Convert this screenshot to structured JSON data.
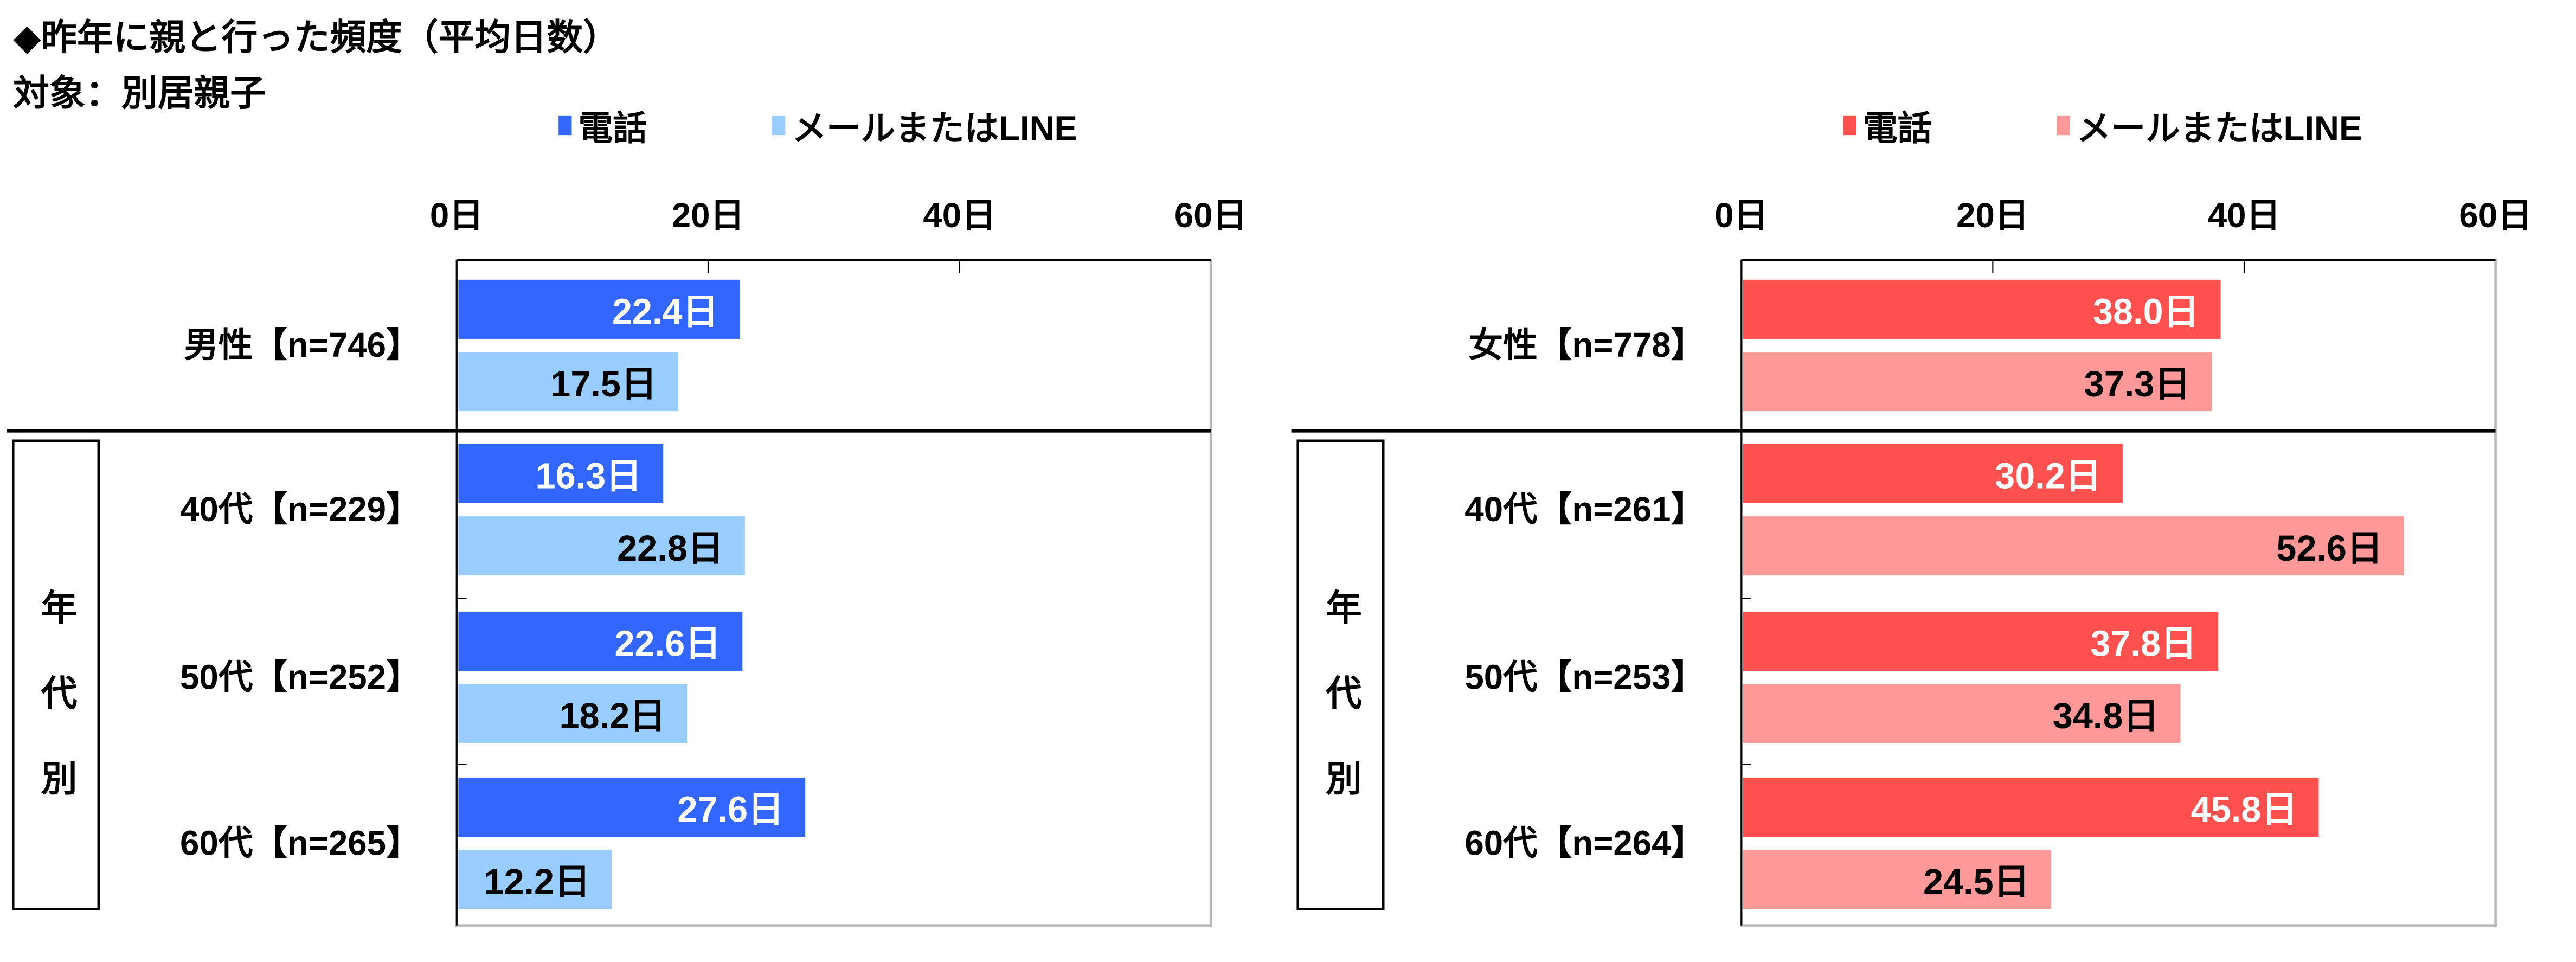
{
  "title": "◆昨年に親と行った頻度（平均日数）",
  "subtitle": "対象：別居親子",
  "group_box_label": "年代別",
  "chart_data": [
    {
      "type": "bar",
      "orientation": "horizontal",
      "categories": [
        "男性【n=746】",
        "40代【n=229】",
        "50代【n=252】",
        "60代【n=265】"
      ],
      "series": [
        {
          "name": "電話",
          "color": "#3366FF",
          "label_color": "#FFFFFF",
          "values": [
            22.4,
            16.3,
            22.6,
            27.6
          ]
        },
        {
          "name": "メールまたはLINE",
          "color": "#99CCFF",
          "label_color": "#000000",
          "values": [
            17.5,
            22.8,
            18.2,
            12.2
          ]
        }
      ],
      "value_unit": "日",
      "xlim": [
        0,
        60
      ],
      "xticks": [
        0,
        20,
        40,
        60
      ],
      "xtick_labels": [
        "0日",
        "20日",
        "40日",
        "60日"
      ],
      "legend_placement": "top",
      "grid": true
    },
    {
      "type": "bar",
      "orientation": "horizontal",
      "categories": [
        "女性【n=778】",
        "40代【n=261】",
        "50代【n=253】",
        "60代【n=264】"
      ],
      "series": [
        {
          "name": "電話",
          "color": "#FF5050",
          "label_color": "#FFFFFF",
          "values": [
            38.0,
            30.2,
            37.8,
            45.8
          ]
        },
        {
          "name": "メールまたはLINE",
          "color": "#FF9999",
          "label_color": "#000000",
          "values": [
            37.3,
            52.6,
            34.8,
            24.5
          ]
        }
      ],
      "value_unit": "日",
      "xlim": [
        0,
        60
      ],
      "xticks": [
        0,
        20,
        40,
        60
      ],
      "xtick_labels": [
        "0日",
        "20日",
        "40日",
        "60日"
      ],
      "legend_placement": "top",
      "grid": true
    }
  ]
}
